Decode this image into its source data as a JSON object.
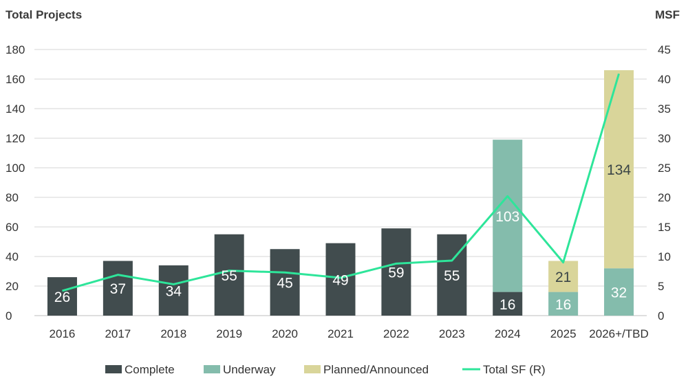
{
  "chart_data": {
    "type": "bar",
    "stacked": true,
    "left_axis_title": "Total Projects",
    "right_axis_title": "MSF",
    "categories": [
      "2016",
      "2017",
      "2018",
      "2019",
      "2020",
      "2021",
      "2022",
      "2023",
      "2024",
      "2025",
      "2026+/TBD"
    ],
    "ylim": [
      0,
      180
    ],
    "yticks": [
      0,
      20,
      40,
      60,
      80,
      100,
      120,
      140,
      160,
      180
    ],
    "y2lim": [
      0,
      45
    ],
    "y2ticks": [
      0,
      5,
      10,
      15,
      20,
      25,
      30,
      35,
      40,
      45
    ],
    "series": [
      {
        "name": "Complete",
        "color": "#414c4e",
        "values": [
          26,
          37,
          34,
          55,
          45,
          49,
          59,
          55,
          16,
          0,
          0
        ]
      },
      {
        "name": "Underway",
        "color": "#84bcac",
        "values": [
          0,
          0,
          0,
          0,
          0,
          0,
          0,
          0,
          103,
          16,
          32
        ]
      },
      {
        "name": "Planned/Announced",
        "color": "#d9d59a",
        "values": [
          0,
          0,
          0,
          0,
          0,
          0,
          0,
          0,
          0,
          21,
          134
        ]
      }
    ],
    "line_series": {
      "name": "Total SF (R)",
      "color": "#2ee59a",
      "axis": "right",
      "values": [
        4.2,
        6.9,
        5.3,
        7.6,
        7.3,
        6.4,
        8.8,
        9.3,
        20.2,
        9.0,
        40.9
      ]
    },
    "legend_position": "bottom",
    "grid": true
  }
}
